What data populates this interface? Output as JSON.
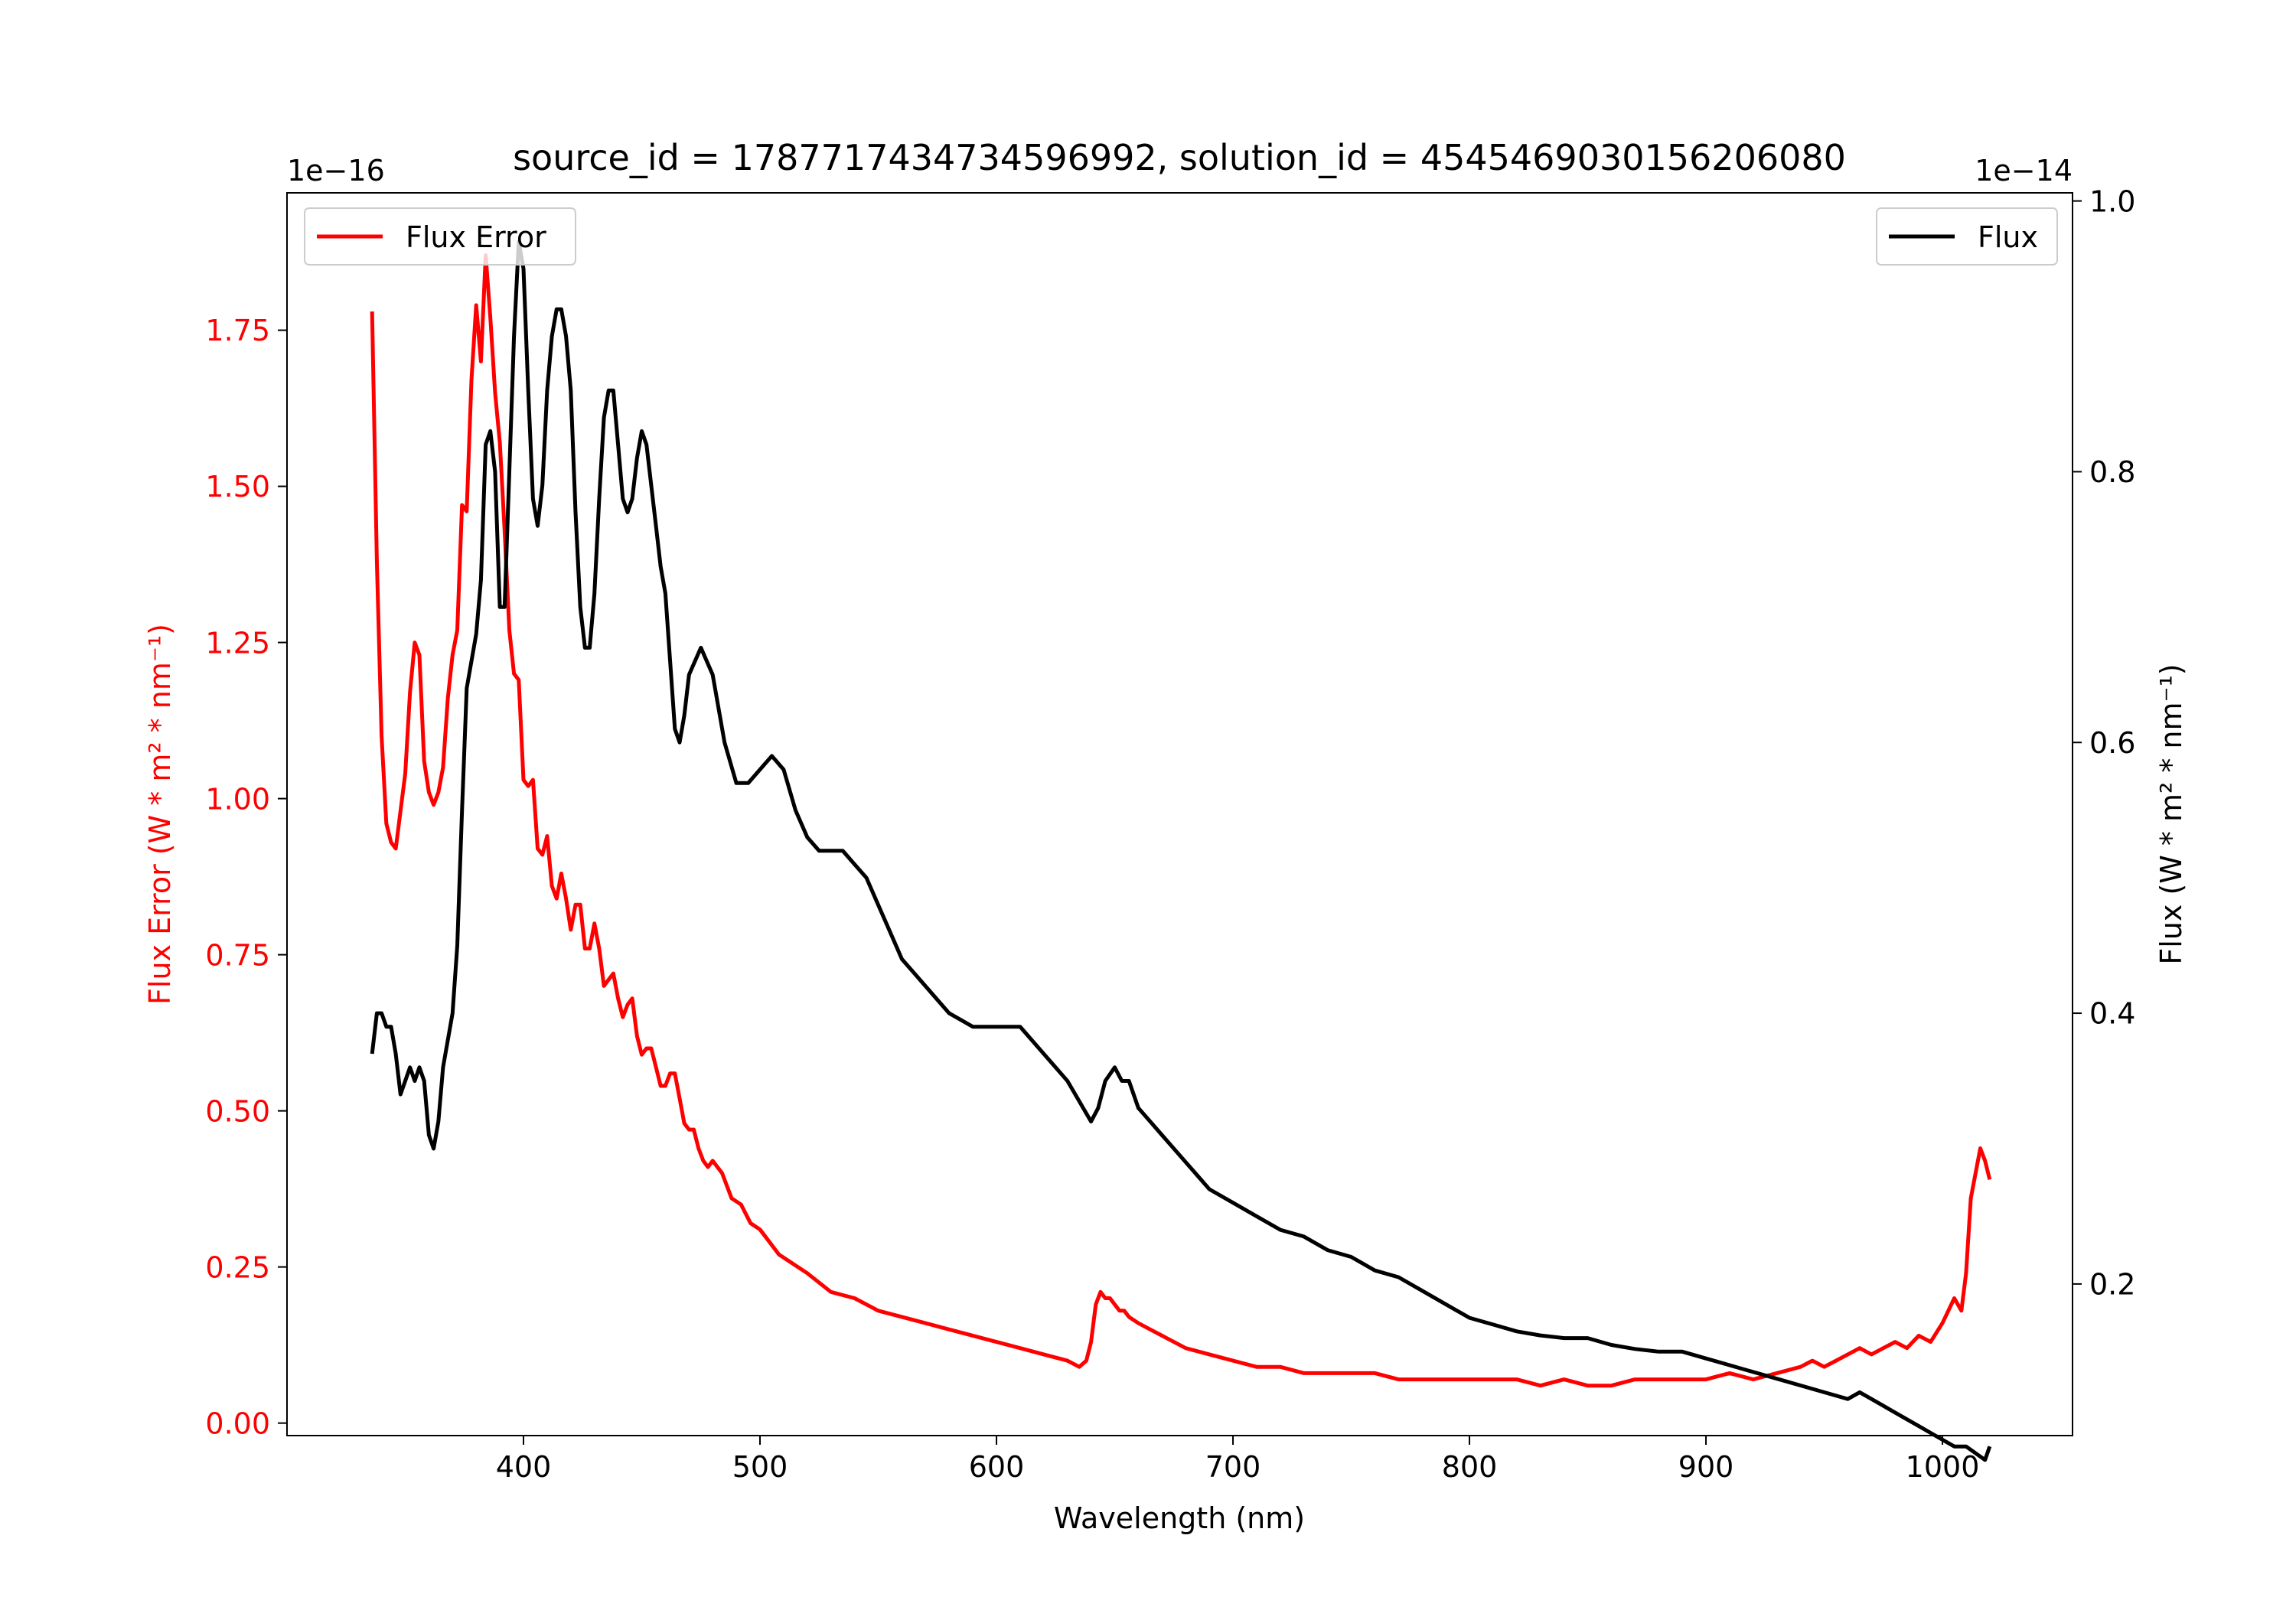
{
  "chart_data": {
    "type": "line",
    "title": "source_id = 1787717434734596992, solution_id = 4545469030156206080",
    "xlabel": "Wavelength (nm)",
    "xlim": [
      300,
      1055
    ],
    "xticks": [
      400,
      500,
      600,
      700,
      800,
      900,
      1000
    ],
    "grid": false,
    "left_axis": {
      "label": "Flux Error (W * m² * nm⁻¹)",
      "offset_label": "1e−16",
      "ylim": [
        -0.02,
        1.97
      ],
      "ticks": [
        0.0,
        0.25,
        0.5,
        0.75,
        1.0,
        1.25,
        1.5,
        1.75
      ],
      "tick_labels": [
        "0.00",
        "0.25",
        "0.50",
        "0.75",
        "1.00",
        "1.25",
        "1.50",
        "1.75"
      ],
      "color": "#ff0000"
    },
    "right_axis": {
      "label": "Flux (W * m² * nm⁻¹)",
      "offset_label": "1e−14",
      "ylim": [
        0.088,
        1.006
      ],
      "ticks": [
        0.2,
        0.4,
        0.6,
        0.8,
        1.0
      ],
      "tick_labels": [
        "0.2",
        "0.4",
        "0.6",
        "0.8",
        "1.0"
      ],
      "color": "#000000"
    },
    "legends": [
      {
        "series": "Flux Error",
        "placement": "upper left"
      },
      {
        "series": "Flux",
        "placement": "upper right"
      }
    ],
    "series": [
      {
        "name": "Flux Error",
        "axis": "left",
        "color": "#ff0000",
        "x": [
          336,
          338,
          340,
          342,
          344,
          346,
          348,
          350,
          352,
          354,
          356,
          358,
          360,
          362,
          364,
          366,
          368,
          370,
          372,
          374,
          376,
          378,
          380,
          382,
          384,
          386,
          388,
          390,
          392,
          394,
          396,
          398,
          400,
          402,
          404,
          406,
          408,
          410,
          412,
          414,
          416,
          418,
          420,
          422,
          424,
          426,
          428,
          430,
          432,
          434,
          436,
          438,
          440,
          442,
          444,
          446,
          448,
          450,
          452,
          454,
          456,
          458,
          460,
          462,
          464,
          466,
          468,
          470,
          472,
          474,
          476,
          478,
          480,
          484,
          488,
          492,
          496,
          500,
          504,
          508,
          512,
          516,
          520,
          530,
          540,
          550,
          560,
          570,
          580,
          590,
          600,
          610,
          620,
          630,
          635,
          638,
          640,
          642,
          644,
          646,
          648,
          650,
          652,
          654,
          656,
          660,
          665,
          670,
          675,
          680,
          690,
          700,
          710,
          720,
          730,
          740,
          750,
          760,
          770,
          780,
          790,
          800,
          810,
          820,
          830,
          840,
          850,
          860,
          870,
          880,
          890,
          900,
          910,
          920,
          930,
          940,
          945,
          950,
          955,
          960,
          965,
          970,
          975,
          980,
          985,
          990,
          995,
          1000,
          1005,
          1008,
          1010,
          1012,
          1014,
          1016,
          1018,
          1020
        ],
        "y": [
          1.78,
          1.38,
          1.1,
          0.96,
          0.93,
          0.92,
          0.98,
          1.04,
          1.17,
          1.25,
          1.23,
          1.06,
          1.01,
          0.99,
          1.01,
          1.05,
          1.16,
          1.23,
          1.27,
          1.47,
          1.46,
          1.67,
          1.79,
          1.7,
          1.87,
          1.77,
          1.65,
          1.57,
          1.43,
          1.27,
          1.2,
          1.19,
          1.03,
          1.02,
          1.03,
          0.92,
          0.91,
          0.94,
          0.86,
          0.84,
          0.88,
          0.84,
          0.79,
          0.83,
          0.83,
          0.76,
          0.76,
          0.8,
          0.76,
          0.7,
          0.71,
          0.72,
          0.68,
          0.65,
          0.67,
          0.68,
          0.62,
          0.59,
          0.6,
          0.6,
          0.57,
          0.54,
          0.54,
          0.56,
          0.56,
          0.52,
          0.48,
          0.47,
          0.47,
          0.44,
          0.42,
          0.41,
          0.42,
          0.4,
          0.36,
          0.35,
          0.32,
          0.31,
          0.29,
          0.27,
          0.26,
          0.25,
          0.24,
          0.21,
          0.2,
          0.18,
          0.17,
          0.16,
          0.15,
          0.14,
          0.13,
          0.12,
          0.11,
          0.1,
          0.09,
          0.1,
          0.13,
          0.19,
          0.21,
          0.2,
          0.2,
          0.19,
          0.18,
          0.18,
          0.17,
          0.16,
          0.15,
          0.14,
          0.13,
          0.12,
          0.11,
          0.1,
          0.09,
          0.09,
          0.08,
          0.08,
          0.08,
          0.08,
          0.07,
          0.07,
          0.07,
          0.07,
          0.07,
          0.07,
          0.06,
          0.07,
          0.06,
          0.06,
          0.07,
          0.07,
          0.07,
          0.07,
          0.08,
          0.07,
          0.08,
          0.09,
          0.1,
          0.09,
          0.1,
          0.11,
          0.12,
          0.11,
          0.12,
          0.13,
          0.12,
          0.14,
          0.13,
          0.16,
          0.2,
          0.18,
          0.24,
          0.36,
          0.4,
          0.44,
          0.42,
          0.39
        ]
      },
      {
        "name": "Flux",
        "axis": "right",
        "color": "#000000",
        "x": [
          336,
          338,
          340,
          342,
          344,
          346,
          348,
          350,
          352,
          354,
          356,
          358,
          360,
          362,
          364,
          366,
          368,
          370,
          372,
          374,
          376,
          378,
          380,
          382,
          384,
          386,
          388,
          390,
          392,
          394,
          396,
          398,
          400,
          402,
          404,
          406,
          408,
          410,
          412,
          414,
          416,
          418,
          420,
          422,
          424,
          426,
          428,
          430,
          432,
          434,
          436,
          438,
          440,
          442,
          444,
          446,
          448,
          450,
          452,
          454,
          456,
          458,
          460,
          462,
          464,
          466,
          468,
          470,
          475,
          480,
          485,
          490,
          495,
          500,
          505,
          510,
          515,
          520,
          525,
          530,
          535,
          540,
          545,
          550,
          555,
          560,
          565,
          570,
          580,
          590,
          600,
          610,
          620,
          630,
          640,
          643,
          646,
          650,
          653,
          656,
          660,
          665,
          670,
          675,
          680,
          685,
          690,
          700,
          710,
          720,
          730,
          740,
          750,
          760,
          770,
          780,
          790,
          800,
          810,
          820,
          830,
          840,
          850,
          860,
          870,
          880,
          890,
          900,
          910,
          920,
          930,
          940,
          950,
          960,
          965,
          970,
          975,
          980,
          985,
          990,
          995,
          1000,
          1005,
          1010,
          1014,
          1018,
          1020
        ],
        "y": [
          0.37,
          0.4,
          0.4,
          0.39,
          0.39,
          0.37,
          0.34,
          0.35,
          0.36,
          0.35,
          0.36,
          0.35,
          0.31,
          0.3,
          0.32,
          0.36,
          0.38,
          0.4,
          0.45,
          0.55,
          0.64,
          0.66,
          0.68,
          0.72,
          0.82,
          0.83,
          0.8,
          0.7,
          0.7,
          0.8,
          0.9,
          0.97,
          0.95,
          0.86,
          0.78,
          0.76,
          0.79,
          0.86,
          0.9,
          0.92,
          0.92,
          0.9,
          0.86,
          0.77,
          0.7,
          0.67,
          0.67,
          0.71,
          0.78,
          0.84,
          0.86,
          0.86,
          0.82,
          0.78,
          0.77,
          0.78,
          0.81,
          0.83,
          0.82,
          0.79,
          0.76,
          0.73,
          0.71,
          0.66,
          0.61,
          0.6,
          0.62,
          0.65,
          0.67,
          0.65,
          0.6,
          0.57,
          0.57,
          0.58,
          0.59,
          0.58,
          0.55,
          0.53,
          0.52,
          0.52,
          0.52,
          0.51,
          0.5,
          0.48,
          0.46,
          0.44,
          0.43,
          0.42,
          0.4,
          0.39,
          0.39,
          0.39,
          0.37,
          0.35,
          0.32,
          0.33,
          0.35,
          0.36,
          0.35,
          0.35,
          0.33,
          0.32,
          0.31,
          0.3,
          0.29,
          0.28,
          0.27,
          0.26,
          0.25,
          0.24,
          0.235,
          0.225,
          0.22,
          0.21,
          0.205,
          0.195,
          0.185,
          0.175,
          0.17,
          0.165,
          0.162,
          0.16,
          0.16,
          0.155,
          0.152,
          0.15,
          0.15,
          0.145,
          0.14,
          0.135,
          0.13,
          0.125,
          0.12,
          0.115,
          0.12,
          0.115,
          0.11,
          0.105,
          0.1,
          0.095,
          0.09,
          0.085,
          0.08,
          0.08,
          0.075,
          0.07,
          0.08
        ]
      }
    ]
  }
}
